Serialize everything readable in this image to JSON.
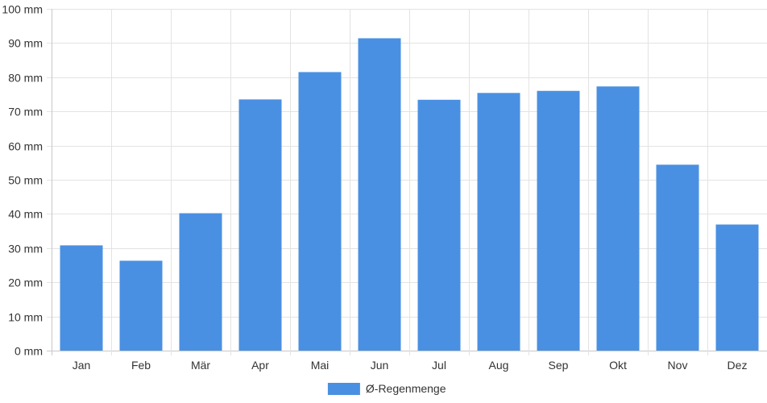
{
  "chart_data": {
    "type": "bar",
    "categories": [
      "Jan",
      "Feb",
      "Mär",
      "Apr",
      "Mai",
      "Jun",
      "Jul",
      "Aug",
      "Sep",
      "Okt",
      "Nov",
      "Dez"
    ],
    "series": [
      {
        "name": "Ø-Regenmenge",
        "values": [
          30.8,
          26.3,
          40.2,
          73.5,
          81.5,
          91.4,
          73.4,
          75.4,
          76.0,
          77.3,
          54.4,
          36.9
        ],
        "color": "#4a90e2"
      }
    ],
    "y_unit": " mm",
    "ylim": [
      0,
      100
    ],
    "yticks": [
      0,
      10,
      20,
      30,
      40,
      50,
      60,
      70,
      80,
      90,
      100
    ],
    "grid": true,
    "legend_position": "bottom-center"
  }
}
